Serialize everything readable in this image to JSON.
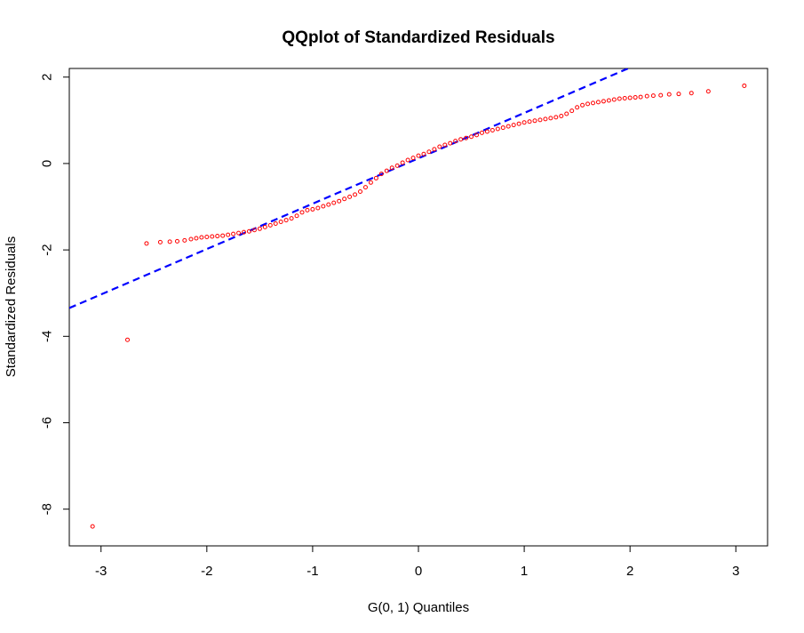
{
  "chart_data": {
    "type": "scatter",
    "title": "QQplot of Standardized Residuals",
    "xlabel": "G(0, 1) Quantiles",
    "ylabel": "Standardized Residuals",
    "xlim": [
      -3.3,
      3.3
    ],
    "ylim": [
      -8.85,
      2.2
    ],
    "x_ticks": [
      -3,
      -2,
      -1,
      0,
      1,
      2,
      3
    ],
    "y_ticks": [
      -8,
      -6,
      -4,
      -2,
      0,
      2
    ],
    "grid": false,
    "legend": "none",
    "point_color": "#ff0000",
    "line_color": "#0000ff",
    "reference_line": {
      "style": "dashed",
      "slope": 1.05,
      "intercept": 0.12
    },
    "series": [
      {
        "marker": "open-circle",
        "points": [
          [
            -3.08,
            -8.4
          ],
          [
            -2.75,
            -4.08
          ],
          [
            -2.57,
            -1.85
          ],
          [
            -2.44,
            -1.82
          ],
          [
            -2.35,
            -1.81
          ],
          [
            -2.28,
            -1.8
          ],
          [
            -2.21,
            -1.78
          ],
          [
            -2.15,
            -1.75
          ],
          [
            -2.1,
            -1.73
          ],
          [
            -2.05,
            -1.71
          ],
          [
            -2.0,
            -1.7
          ],
          [
            -1.95,
            -1.69
          ],
          [
            -1.9,
            -1.68
          ],
          [
            -1.85,
            -1.67
          ],
          [
            -1.8,
            -1.65
          ],
          [
            -1.75,
            -1.63
          ],
          [
            -1.7,
            -1.61
          ],
          [
            -1.65,
            -1.59
          ],
          [
            -1.6,
            -1.57
          ],
          [
            -1.55,
            -1.54
          ],
          [
            -1.5,
            -1.51
          ],
          [
            -1.45,
            -1.47
          ],
          [
            -1.4,
            -1.43
          ],
          [
            -1.35,
            -1.39
          ],
          [
            -1.3,
            -1.35
          ],
          [
            -1.25,
            -1.31
          ],
          [
            -1.2,
            -1.27
          ],
          [
            -1.15,
            -1.21
          ],
          [
            -1.1,
            -1.13
          ],
          [
            -1.05,
            -1.08
          ],
          [
            -1.0,
            -1.06
          ],
          [
            -0.95,
            -1.03
          ],
          [
            -0.9,
            -0.99
          ],
          [
            -0.85,
            -0.95
          ],
          [
            -0.8,
            -0.91
          ],
          [
            -0.75,
            -0.87
          ],
          [
            -0.7,
            -0.82
          ],
          [
            -0.65,
            -0.77
          ],
          [
            -0.6,
            -0.72
          ],
          [
            -0.55,
            -0.65
          ],
          [
            -0.5,
            -0.55
          ],
          [
            -0.45,
            -0.44
          ],
          [
            -0.4,
            -0.34
          ],
          [
            -0.35,
            -0.24
          ],
          [
            -0.3,
            -0.17
          ],
          [
            -0.25,
            -0.1
          ],
          [
            -0.2,
            -0.05
          ],
          [
            -0.15,
            0.02
          ],
          [
            -0.1,
            0.08
          ],
          [
            -0.05,
            0.13
          ],
          [
            0.0,
            0.18
          ],
          [
            0.05,
            0.22
          ],
          [
            0.1,
            0.27
          ],
          [
            0.15,
            0.33
          ],
          [
            0.2,
            0.39
          ],
          [
            0.25,
            0.43
          ],
          [
            0.3,
            0.47
          ],
          [
            0.35,
            0.52
          ],
          [
            0.4,
            0.56
          ],
          [
            0.45,
            0.59
          ],
          [
            0.5,
            0.62
          ],
          [
            0.55,
            0.66
          ],
          [
            0.6,
            0.71
          ],
          [
            0.65,
            0.74
          ],
          [
            0.7,
            0.77
          ],
          [
            0.75,
            0.8
          ],
          [
            0.8,
            0.83
          ],
          [
            0.85,
            0.86
          ],
          [
            0.9,
            0.89
          ],
          [
            0.95,
            0.92
          ],
          [
            1.0,
            0.95
          ],
          [
            1.05,
            0.97
          ],
          [
            1.1,
            0.99
          ],
          [
            1.15,
            1.01
          ],
          [
            1.2,
            1.03
          ],
          [
            1.25,
            1.05
          ],
          [
            1.3,
            1.07
          ],
          [
            1.35,
            1.1
          ],
          [
            1.4,
            1.15
          ],
          [
            1.45,
            1.22
          ],
          [
            1.5,
            1.3
          ],
          [
            1.55,
            1.35
          ],
          [
            1.6,
            1.38
          ],
          [
            1.65,
            1.4
          ],
          [
            1.7,
            1.42
          ],
          [
            1.75,
            1.44
          ],
          [
            1.8,
            1.46
          ],
          [
            1.85,
            1.48
          ],
          [
            1.9,
            1.5
          ],
          [
            1.95,
            1.51
          ],
          [
            2.0,
            1.52
          ],
          [
            2.05,
            1.53
          ],
          [
            2.1,
            1.54
          ],
          [
            2.16,
            1.56
          ],
          [
            2.22,
            1.57
          ],
          [
            2.29,
            1.58
          ],
          [
            2.37,
            1.6
          ],
          [
            2.46,
            1.61
          ],
          [
            2.58,
            1.63
          ],
          [
            2.74,
            1.67
          ],
          [
            3.08,
            1.8
          ]
        ]
      }
    ]
  }
}
